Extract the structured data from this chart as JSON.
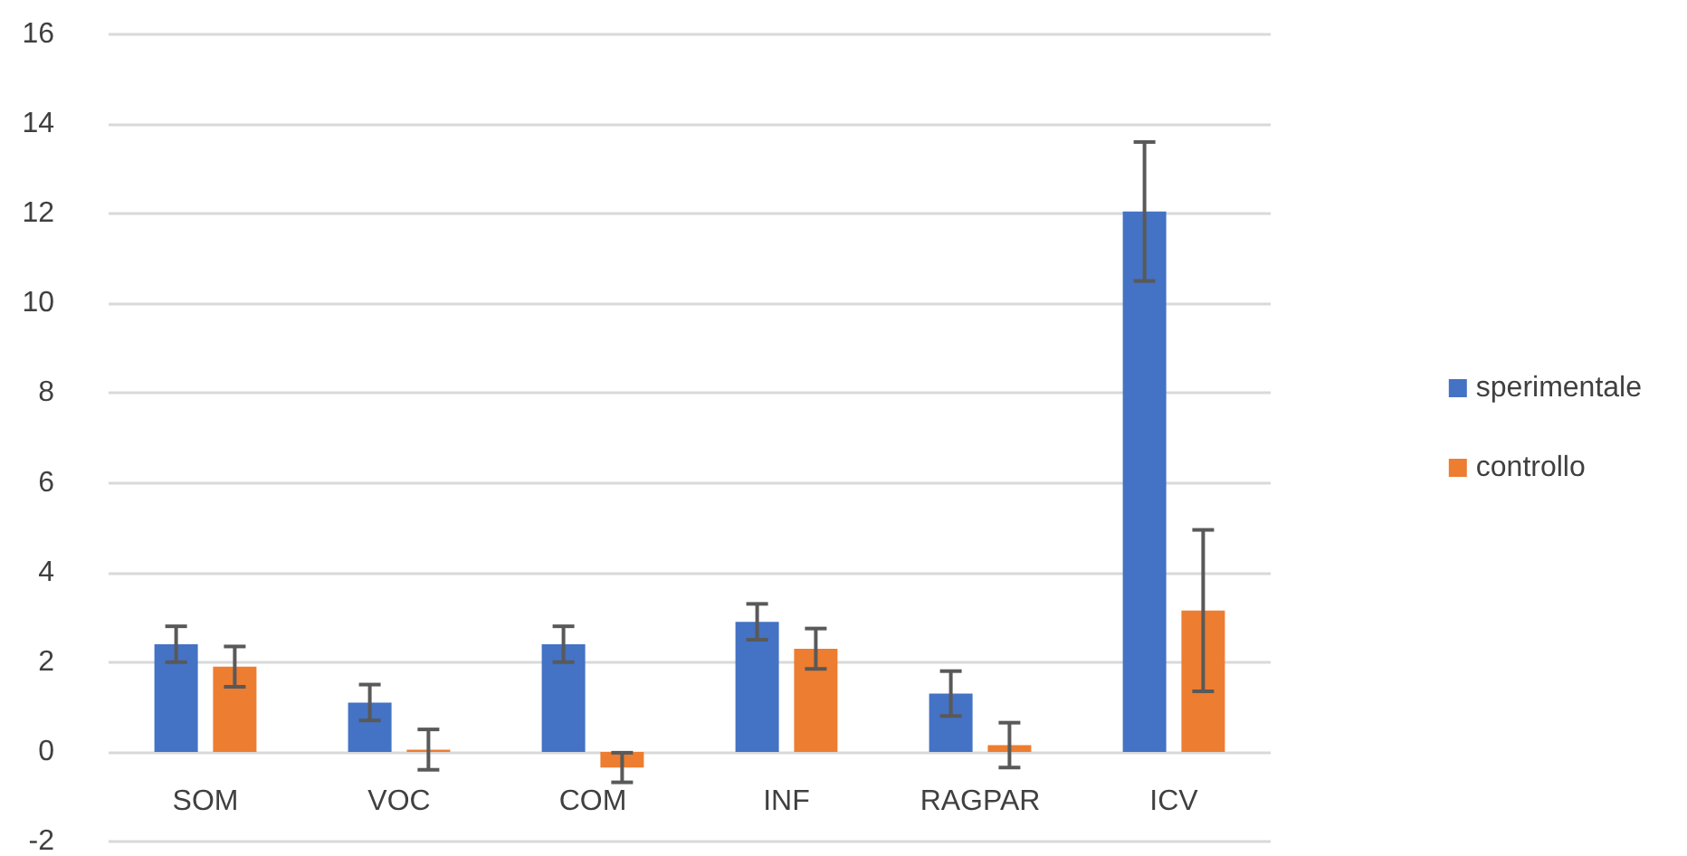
{
  "chart_data": {
    "type": "bar",
    "categories": [
      "SOM",
      "VOC",
      "COM",
      "INF",
      "RAGPAR",
      "ICV"
    ],
    "series": [
      {
        "name": "sperimentale",
        "color": "#4472c4",
        "values": [
          2.4,
          1.1,
          2.4,
          2.9,
          1.3,
          12.05
        ],
        "errors": [
          0.4,
          0.4,
          0.4,
          0.4,
          0.5,
          1.55
        ]
      },
      {
        "name": "controllo",
        "color": "#ed7d31",
        "values": [
          1.9,
          0.05,
          -0.35,
          2.3,
          0.15,
          3.15
        ],
        "errors": [
          0.45,
          0.45,
          0.33,
          0.45,
          0.5,
          1.8
        ]
      }
    ],
    "ylim": [
      -2,
      16
    ],
    "yticks": [
      -2,
      0,
      2,
      4,
      6,
      8,
      10,
      12,
      14,
      16
    ],
    "grid": "y",
    "legend": "right"
  }
}
